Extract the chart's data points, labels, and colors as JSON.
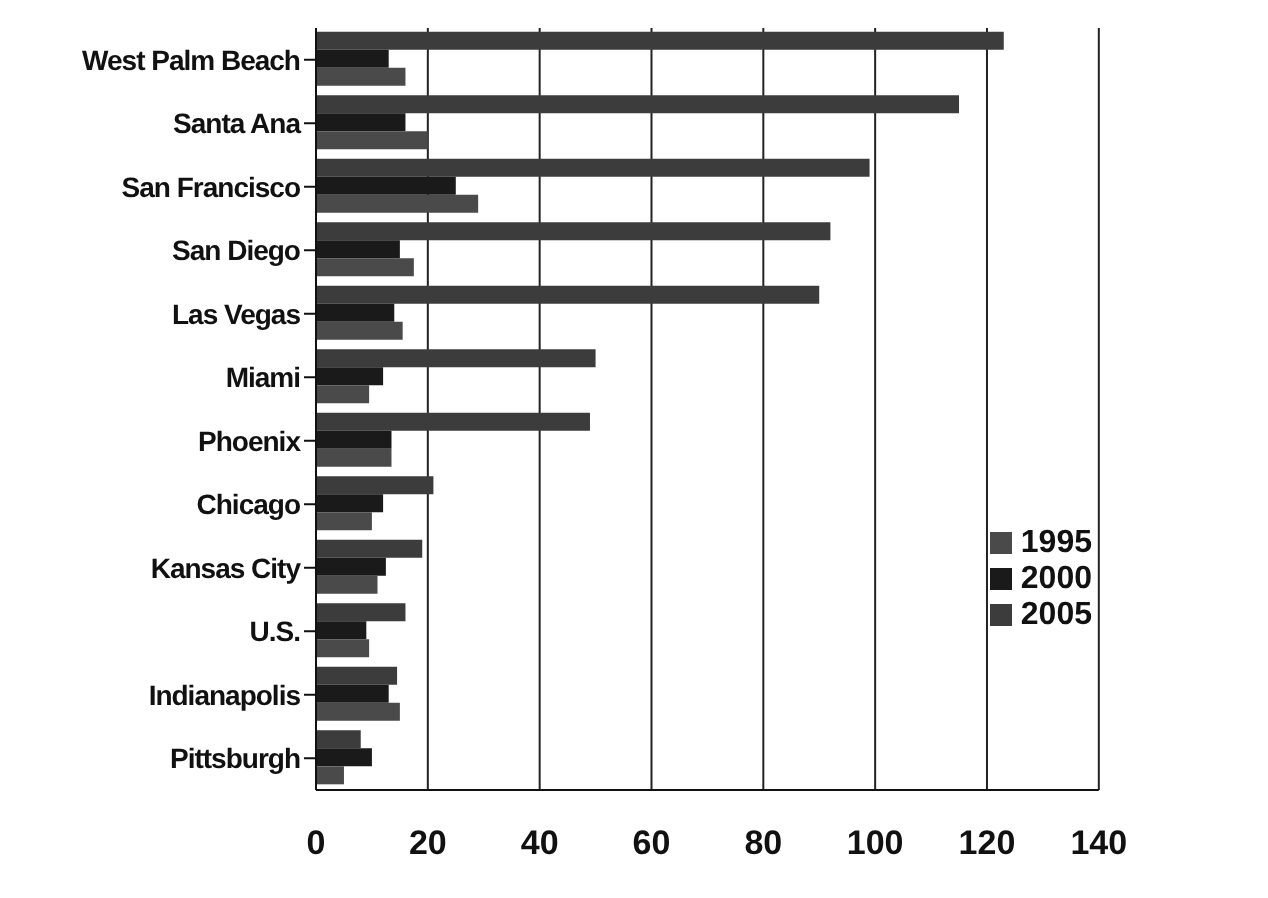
{
  "chart_data": {
    "type": "bar",
    "orientation": "horizontal",
    "categories": [
      "West Palm Beach",
      "Santa Ana",
      "San Francisco",
      "San Diego",
      "Las Vegas",
      "Miami",
      "Phoenix",
      "Chicago",
      "Kansas City",
      "U.S.",
      "Indianapolis",
      "Pittsburgh"
    ],
    "series": [
      {
        "name": "2005",
        "color": "#3c3c3c",
        "values": [
          123,
          115,
          99,
          92,
          90,
          50,
          49,
          21,
          19,
          16,
          14.5,
          8
        ]
      },
      {
        "name": "2000",
        "color": "#1a1a1a",
        "values": [
          13,
          16,
          25,
          15,
          14,
          12,
          13.5,
          12,
          12.5,
          9,
          13,
          10
        ]
      },
      {
        "name": "1995",
        "color": "#4a4a4a",
        "values": [
          16,
          20,
          29,
          17.5,
          15.5,
          9.5,
          13.5,
          10,
          11,
          9.5,
          15,
          5
        ]
      }
    ],
    "xlim": [
      0,
      140
    ],
    "xticks": [
      0,
      20,
      40,
      60,
      80,
      100,
      120,
      140
    ],
    "grid": "x",
    "legend": "right"
  }
}
